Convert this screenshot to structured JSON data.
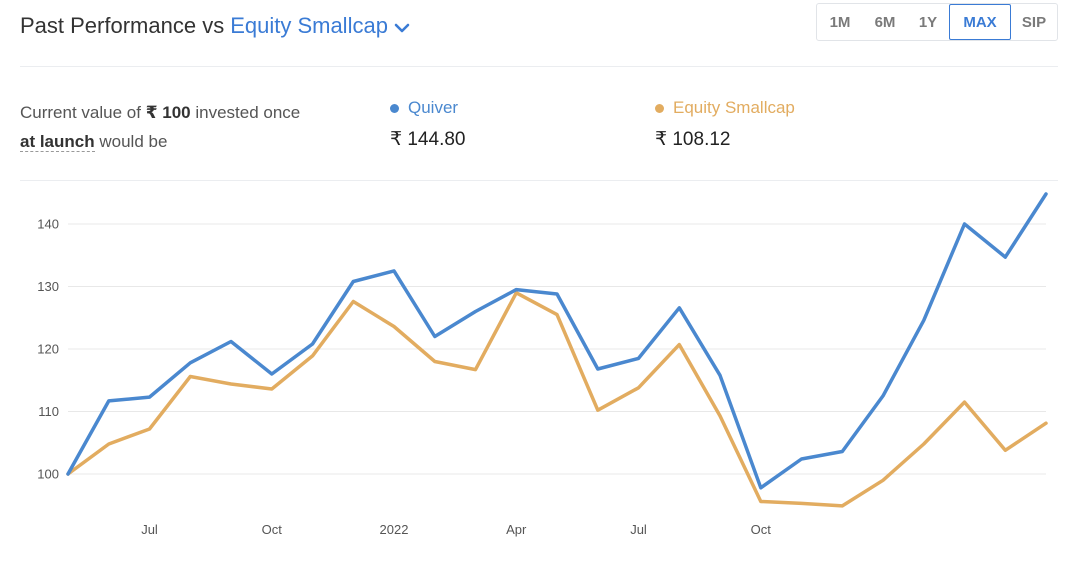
{
  "header": {
    "title_prefix": "Past Performance vs",
    "benchmark_name": "Equity Smallcap",
    "dropdown_icon": "chevron-down-icon"
  },
  "range_buttons": [
    {
      "label": "1M",
      "active": false
    },
    {
      "label": "6M",
      "active": false
    },
    {
      "label": "1Y",
      "active": false
    },
    {
      "label": "MAX",
      "active": true
    },
    {
      "label": "SIP",
      "active": false
    }
  ],
  "summary": {
    "text_part1": "Current value of",
    "amount": "₹ 100",
    "text_part2": "invested once",
    "launch_link": "at launch",
    "text_part3": "would be"
  },
  "legend": [
    {
      "name": "Quiver",
      "value": "₹ 144.80",
      "color": "#4a88cf"
    },
    {
      "name": "Equity Smallcap",
      "value": "₹ 108.12",
      "color": "#e2ac60"
    }
  ],
  "chart_data": {
    "type": "line",
    "x_labels": [
      "Jul",
      "Oct",
      "2022",
      "Apr",
      "Jul",
      "Oct"
    ],
    "label_index": [
      2,
      5,
      8,
      11,
      14,
      17
    ],
    "yticks": [
      100,
      110,
      120,
      130,
      140
    ],
    "ylim": [
      94,
      147
    ],
    "grid": true,
    "series": [
      {
        "name": "Quiver",
        "color": "#4a88cf",
        "values": [
          100,
          111.7,
          112.3,
          117.8,
          121.2,
          116.0,
          120.8,
          130.8,
          132.5,
          122.0,
          126.0,
          129.5,
          128.8,
          116.8,
          118.5,
          126.6,
          115.8,
          97.8,
          102.4,
          103.6,
          112.5,
          124.6,
          140.0,
          134.7,
          144.8
        ]
      },
      {
        "name": "Equity Smallcap",
        "color": "#e2ac60",
        "values": [
          100,
          104.8,
          107.2,
          115.6,
          114.4,
          113.6,
          118.9,
          127.6,
          123.6,
          118.0,
          116.7,
          129.0,
          125.5,
          110.2,
          113.8,
          120.7,
          109.3,
          95.6,
          95.3,
          94.9,
          99.0,
          104.8,
          111.5,
          103.8,
          108.12
        ]
      }
    ]
  }
}
